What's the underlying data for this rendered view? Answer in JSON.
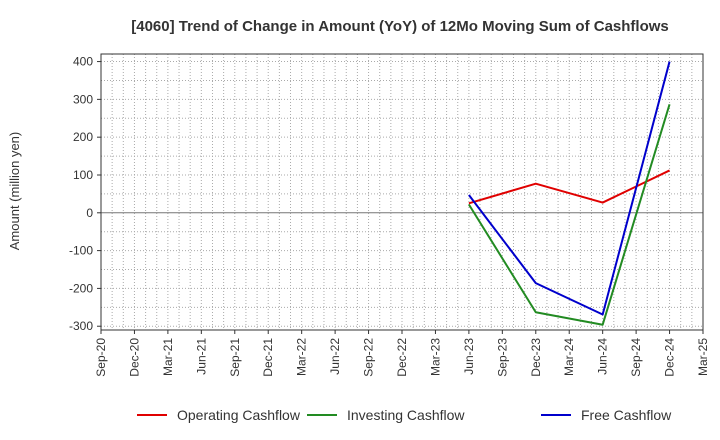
{
  "chart_data": {
    "type": "line",
    "title": "[4060]  Trend of Change in Amount (YoY) of 12Mo Moving Sum of Cashflows",
    "xlabel": "",
    "ylabel": "Amount (million yen)",
    "ylim": [
      -310,
      420
    ],
    "yticks": [
      400,
      300,
      200,
      100,
      0,
      -100,
      -200,
      -300
    ],
    "categories": [
      "Sep-20",
      "Dec-20",
      "Mar-21",
      "Jun-21",
      "Sep-21",
      "Dec-21",
      "Mar-22",
      "Jun-22",
      "Sep-22",
      "Dec-22",
      "Mar-23",
      "Jun-23",
      "Sep-23",
      "Dec-23",
      "Mar-24",
      "Jun-24",
      "Sep-24",
      "Dec-24",
      "Mar-25"
    ],
    "series": [
      {
        "name": "Operating Cashflow",
        "color": "#e00000",
        "values": [
          null,
          null,
          null,
          null,
          null,
          null,
          null,
          null,
          null,
          null,
          null,
          25,
          null,
          77,
          null,
          27,
          null,
          112,
          null
        ]
      },
      {
        "name": "Investing Cashflow",
        "color": "#228b22",
        "values": [
          null,
          null,
          null,
          null,
          null,
          null,
          null,
          null,
          null,
          null,
          null,
          22,
          null,
          -263,
          null,
          -296,
          null,
          287,
          null
        ]
      },
      {
        "name": "Free Cashflow",
        "color": "#0000cc",
        "values": [
          null,
          null,
          null,
          null,
          null,
          null,
          null,
          null,
          null,
          null,
          null,
          47,
          null,
          -186,
          null,
          -269,
          null,
          400,
          null
        ]
      }
    ],
    "grid": true,
    "legend": "bottom"
  }
}
